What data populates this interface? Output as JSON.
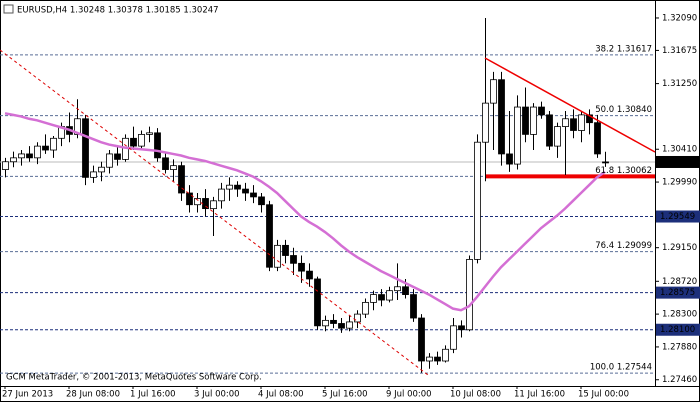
{
  "chart_data": {
    "type": "candlestick",
    "title": "EURUSD,H4  1.30248 1.30378 1.30185 1.30247",
    "footer": "GCM MetaTrader, © 2001-2013, MetaQuotes Software Corp.",
    "categories": [
      "27 Jun 2013",
      null,
      null,
      null,
      null,
      null,
      null,
      null,
      "28 Jun 08:00",
      null,
      null,
      null,
      null,
      null,
      null,
      null,
      "1 Jul 16:00",
      null,
      null,
      null,
      null,
      null,
      null,
      null,
      "3 Jul 00:00",
      null,
      null,
      null,
      null,
      null,
      null,
      null,
      "4 Jul 08:00",
      null,
      null,
      null,
      null,
      null,
      null,
      null,
      "5 Jul 16:00",
      null,
      null,
      null,
      null,
      null,
      null,
      null,
      "9 Jul 00:00",
      null,
      null,
      null,
      null,
      null,
      null,
      null,
      "10 Jul 08:00",
      null,
      null,
      null,
      null,
      null,
      null,
      null,
      "11 Jul 16:00",
      null,
      null,
      null,
      null,
      null,
      null,
      null,
      "15 Jul 00:00",
      null,
      null,
      null
    ],
    "open": [
      1.3015,
      1.3025,
      1.303,
      1.3035,
      1.303,
      1.3045,
      1.304,
      1.3055,
      1.307,
      1.306,
      1.308,
      1.3005,
      1.3012,
      1.3018,
      1.3035,
      1.3028,
      1.3055,
      1.3045,
      1.306,
      1.3062,
      1.303,
      1.3015,
      1.302,
      1.2985,
      1.297,
      1.2978,
      1.2965,
      1.2975,
      1.299,
      1.2995,
      1.299,
      1.2985,
      1.298,
      1.297,
      1.289,
      1.2918,
      1.2905,
      1.2895,
      1.2885,
      1.2875,
      1.2815,
      1.2822,
      1.2818,
      1.2812,
      1.282,
      1.283,
      1.2845,
      1.2855,
      1.2848,
      1.286,
      1.2865,
      1.2855,
      1.2825,
      1.277,
      1.2775,
      1.277,
      1.2785,
      1.2815,
      1.281,
      1.29,
      1.305,
      1.31,
      1.313,
      1.3035,
      1.3022,
      1.3095,
      1.306,
      1.3095,
      1.3085,
      1.3045,
      1.307,
      1.308,
      1.3065,
      1.3085,
      1.3075,
      1.30248
    ],
    "high": [
      1.303,
      1.3038,
      1.304,
      1.3045,
      1.305,
      1.306,
      1.3058,
      1.3075,
      1.3088,
      1.3105,
      1.3085,
      1.302,
      1.3025,
      1.304,
      1.3045,
      1.306,
      1.307,
      1.3065,
      1.307,
      1.3068,
      1.3038,
      1.3028,
      1.3025,
      1.2995,
      1.2985,
      1.299,
      1.298,
      1.2998,
      1.3005,
      1.3,
      1.2998,
      1.2995,
      1.2985,
      1.2975,
      1.2925,
      1.2925,
      1.2915,
      1.2905,
      1.2895,
      1.2878,
      1.2828,
      1.283,
      1.2825,
      1.2828,
      1.2835,
      1.285,
      1.286,
      1.2862,
      1.2865,
      1.2895,
      1.2875,
      1.2862,
      1.283,
      1.278,
      1.2782,
      1.279,
      1.2825,
      1.2822,
      1.2905,
      1.306,
      1.3209,
      1.314,
      1.314,
      1.309,
      1.311,
      1.312,
      1.31,
      1.3102,
      1.309,
      1.3075,
      1.309,
      1.3092,
      1.309,
      1.3092,
      1.3085,
      1.30378
    ],
    "low": [
      1.3005,
      1.3018,
      1.302,
      1.3025,
      1.3022,
      1.3035,
      1.303,
      1.3045,
      1.305,
      1.3055,
      1.2995,
      1.2998,
      1.3,
      1.301,
      1.302,
      1.3025,
      1.304,
      1.304,
      1.305,
      1.3025,
      1.301,
      1.3,
      1.2975,
      1.296,
      1.296,
      1.2955,
      1.293,
      1.2965,
      1.2975,
      1.298,
      1.2975,
      1.2972,
      1.296,
      1.2885,
      1.2885,
      1.2895,
      1.288,
      1.287,
      1.2865,
      1.281,
      1.2808,
      1.2812,
      1.2806,
      1.2808,
      1.2812,
      1.2825,
      1.2835,
      1.284,
      1.2845,
      1.2848,
      1.285,
      1.282,
      1.2755,
      1.276,
      1.2765,
      1.2768,
      1.278,
      1.28,
      1.2808,
      1.2895,
      1.3,
      1.304,
      1.302,
      1.3012,
      1.3015,
      1.305,
      1.304,
      1.308,
      1.304,
      1.303,
      1.3008,
      1.3055,
      1.305,
      1.306,
      1.303,
      1.30185
    ],
    "close": [
      1.3025,
      1.303,
      1.3035,
      1.303,
      1.3045,
      1.304,
      1.3055,
      1.307,
      1.306,
      1.308,
      1.3005,
      1.3012,
      1.3018,
      1.3035,
      1.3028,
      1.3055,
      1.3045,
      1.306,
      1.3062,
      1.303,
      1.3015,
      1.302,
      1.2985,
      1.297,
      1.2978,
      1.2965,
      1.2975,
      1.299,
      1.2995,
      1.299,
      1.2985,
      1.298,
      1.297,
      1.289,
      1.2918,
      1.2905,
      1.2895,
      1.2885,
      1.2875,
      1.2815,
      1.2822,
      1.2818,
      1.2812,
      1.282,
      1.283,
      1.2845,
      1.2855,
      1.2848,
      1.286,
      1.2865,
      1.2855,
      1.2825,
      1.277,
      1.2775,
      1.277,
      1.2785,
      1.2815,
      1.281,
      1.29,
      1.305,
      1.31,
      1.313,
      1.3035,
      1.3022,
      1.3095,
      1.306,
      1.3095,
      1.3085,
      1.3045,
      1.307,
      1.308,
      1.3065,
      1.3085,
      1.3075,
      1.3035,
      1.30247
    ],
    "moving_average": {
      "color": "#d46fd4",
      "values": [
        1.3087,
        1.3085,
        1.3083,
        1.308,
        1.3078,
        1.3075,
        1.3072,
        1.3069,
        1.3066,
        1.3062,
        1.3058,
        1.3054,
        1.305,
        1.3047,
        1.3045,
        1.3043,
        1.3042,
        1.3041,
        1.304,
        1.3039,
        1.3037,
        1.3035,
        1.3033,
        1.303,
        1.3028,
        1.3026,
        1.3023,
        1.302,
        1.3017,
        1.3014,
        1.301,
        1.3006,
        1.3,
        1.2993,
        1.2985,
        1.2975,
        1.2965,
        1.2955,
        1.2948,
        1.2942,
        1.2935,
        1.2927,
        1.2918,
        1.291,
        1.2903,
        1.2897,
        1.2891,
        1.2885,
        1.288,
        1.2875,
        1.287,
        1.2865,
        1.286,
        1.2855,
        1.2849,
        1.2843,
        1.2837,
        1.2835,
        1.284,
        1.2852,
        1.2865,
        1.2878,
        1.289,
        1.29,
        1.291,
        1.292,
        1.293,
        1.294,
        1.2948,
        1.2956,
        1.2965,
        1.2975,
        1.2985,
        1.2995,
        1.3005,
        1.3012
      ]
    },
    "ylim": [
      1.2738,
      1.3232
    ],
    "yticks": [
      {
        "value": 1.3209,
        "label": "1.32090"
      },
      {
        "value": 1.31675,
        "label": "1.31675"
      },
      {
        "value": 1.3125,
        "label": "1.31250"
      },
      {
        "value": 1.3041,
        "label": "1.30410"
      },
      {
        "value": 1.2999,
        "label": "1.29990"
      },
      {
        "value": 1.2915,
        "label": "1.29150"
      },
      {
        "value": 1.2872,
        "label": "1.28720"
      },
      {
        "value": 1.283,
        "label": "1.28300"
      },
      {
        "value": 1.2788,
        "label": "1.27880"
      },
      {
        "value": 1.2746,
        "label": "1.27460"
      }
    ],
    "fib_levels": [
      {
        "value": 1.31617,
        "label": "38.2 1.31617"
      },
      {
        "value": 1.3084,
        "label": "50.0 1.30840"
      },
      {
        "value": 1.30062,
        "label": "61.8 1.30062"
      },
      {
        "value": 1.29099,
        "label": "76.4 1.29099"
      },
      {
        "value": 1.27544,
        "label": "100.0 1.27544"
      }
    ],
    "price_levels": [
      {
        "value": 1.29549,
        "label": "1.29549"
      },
      {
        "value": 1.28575,
        "label": "1.28575"
      },
      {
        "value": 1.281,
        "label": "1.28100"
      }
    ],
    "current_price": {
      "value": 1.30247,
      "label": "1.30247"
    }
  }
}
